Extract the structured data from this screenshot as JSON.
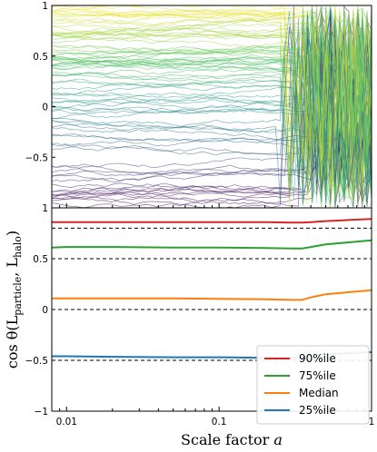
{
  "chart_data": [
    {
      "type": "line",
      "panel": "top",
      "description_source": "individual particle angular-momentum alignment tracks",
      "xscale": "log",
      "xlim": [
        0.008,
        1.0
      ],
      "ylim": [
        -1,
        1
      ],
      "yticks": [
        -0.5,
        0,
        0.5,
        1
      ],
      "ytick_labels": [
        "−0.5",
        "0",
        "0.5",
        "1"
      ],
      "colormap": [
        "#440154",
        "#3b528b",
        "#21918c",
        "#5ec962",
        "#fde725"
      ],
      "n_tracks": 90,
      "grid": false
    },
    {
      "type": "line",
      "panel": "bottom",
      "xscale": "log",
      "xlim": [
        0.008,
        1.0
      ],
      "ylim": [
        -1,
        1
      ],
      "xticks": [
        0.01,
        0.1,
        1
      ],
      "xtick_labels": [
        "0.01",
        "0.1",
        "1"
      ],
      "yticks": [
        -1,
        -0.5,
        0,
        0.5,
        1
      ],
      "ytick_labels": [
        "−1",
        "−0.5",
        "0",
        "0.5",
        "1"
      ],
      "xlabel": "Scale factor a",
      "ylabel": "cos θ(L_particle, L_halo)",
      "reference_lines": [
        0.8,
        0.5,
        0.0,
        -0.5
      ],
      "x": [
        0.008,
        0.01,
        0.02,
        0.05,
        0.1,
        0.2,
        0.3,
        0.35,
        0.4,
        0.5,
        0.7,
        1.0
      ],
      "series": [
        {
          "name": "90%ile",
          "color": "#d62728",
          "values": [
            0.86,
            0.86,
            0.86,
            0.86,
            0.86,
            0.86,
            0.855,
            0.855,
            0.86,
            0.87,
            0.88,
            0.89
          ]
        },
        {
          "name": "75%ile",
          "color": "#2ca02c",
          "values": [
            0.61,
            0.615,
            0.615,
            0.61,
            0.61,
            0.605,
            0.6,
            0.6,
            0.615,
            0.64,
            0.66,
            0.68
          ]
        },
        {
          "name": "Median",
          "color": "#ff7f0e",
          "values": [
            0.11,
            0.11,
            0.11,
            0.11,
            0.105,
            0.1,
            0.095,
            0.095,
            0.12,
            0.15,
            0.17,
            0.19
          ]
        },
        {
          "name": "25%ile",
          "color": "#1f77b4",
          "values": [
            -0.46,
            -0.46,
            -0.465,
            -0.47,
            -0.47,
            -0.475,
            -0.475,
            -0.47,
            -0.455,
            -0.44,
            -0.43,
            -0.42
          ]
        }
      ],
      "legend": "bottom-right"
    }
  ],
  "labels": {
    "ylabel": "cos θ(L",
    "ylabel_sub1": "particle",
    "ylabel_mid": ", L",
    "ylabel_sub2": "halo",
    "ylabel_end": ")",
    "xlabel": "Scale factor ",
    "xlabel_var": "a"
  }
}
